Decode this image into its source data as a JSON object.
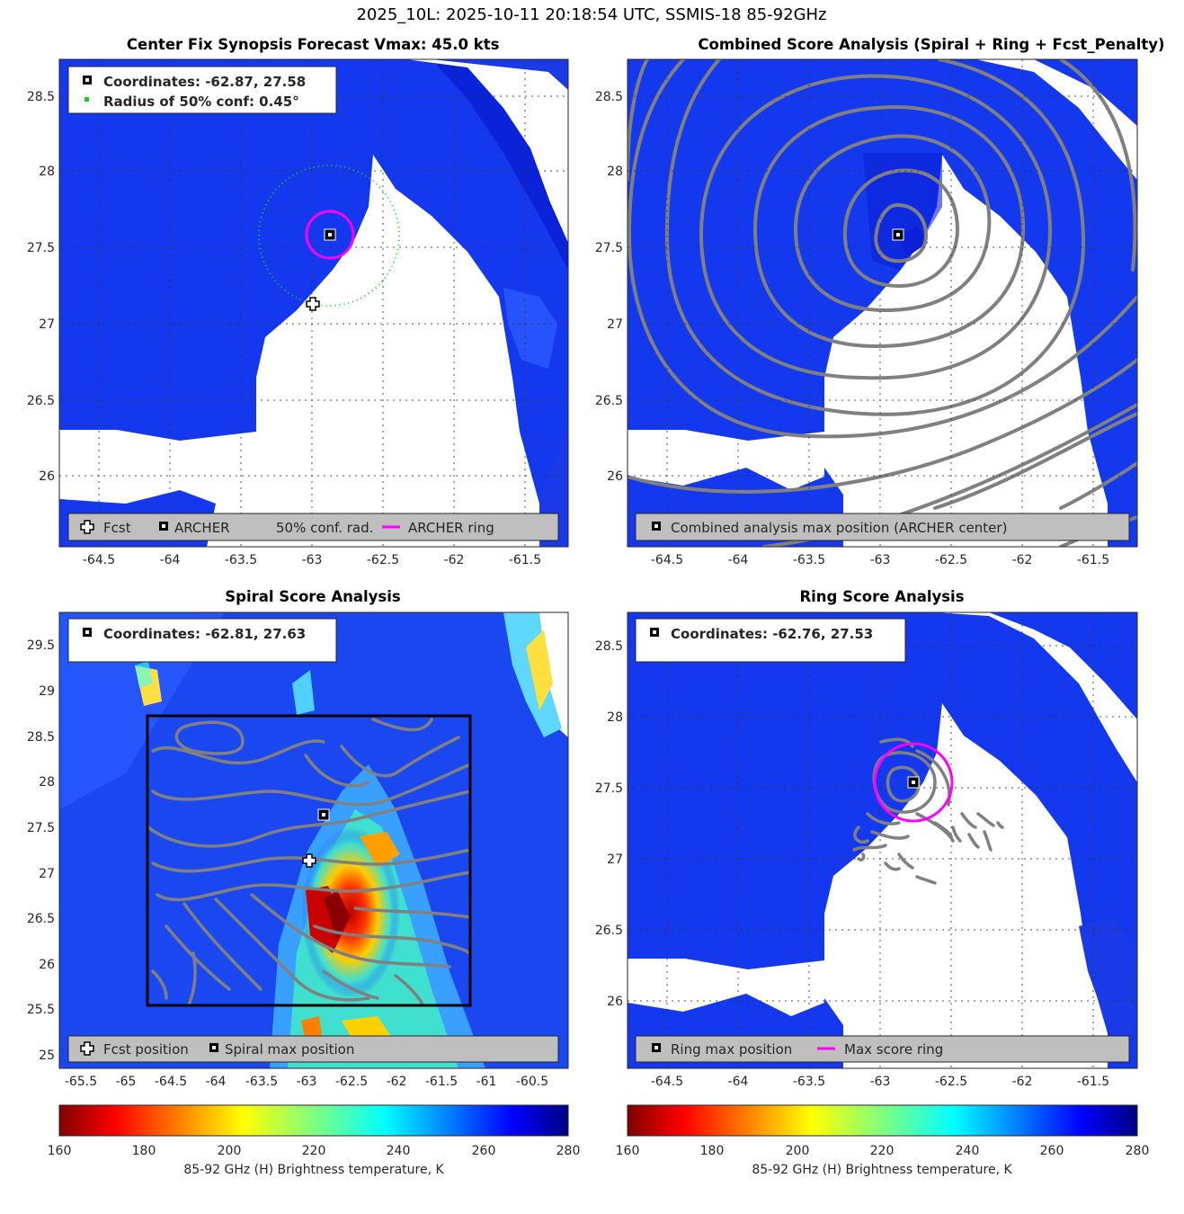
{
  "figure": {
    "title": "2025_10L: 2025-10-11 20:18:54 UTC, SSMIS-18 85-92GHz"
  },
  "colors": {
    "ring": "#ff00ff",
    "conf_circle": "#22cc22",
    "contour": "#808080",
    "legend_bg": "#bfbfbf",
    "no_data": "#ffffff"
  },
  "panels": {
    "synopsis": {
      "title": "Center Fix Synopsis",
      "subtitle": "Forecast Vmax: 45.0 kts",
      "info_line1": "Coordinates: -62.87, 27.58",
      "info_line2": "Radius of 50% conf: 0.45°",
      "legend": [
        "Fcst",
        "ARCHER",
        "50% conf. rad.",
        "ARCHER ring"
      ]
    },
    "combined": {
      "title": "Combined Score Analysis (Spiral + Ring + Fcst_Penalty)",
      "legend": [
        "Combined analysis max position (ARCHER center)"
      ]
    },
    "spiral": {
      "title": "Spiral Score Analysis",
      "info_line1": "Coordinates: -62.81, 27.63",
      "legend": [
        "Fcst position",
        "Spiral max position"
      ]
    },
    "ring": {
      "title": "Ring Score Analysis",
      "info_line1": "Coordinates: -62.76, 27.53",
      "legend": [
        "Ring max position",
        "Max score ring"
      ]
    }
  },
  "colorbars": [
    {
      "label": "85-92 GHz (H) Brightness temperature, K",
      "ticks": [
        "160",
        "180",
        "200",
        "220",
        "240",
        "260",
        "280"
      ]
    },
    {
      "label": "85-92 GHz (H) Brightness temperature, K",
      "ticks": [
        "160",
        "180",
        "200",
        "220",
        "240",
        "260",
        "280"
      ]
    }
  ],
  "chart_data": [
    {
      "type": "heatmap",
      "title": "Center Fix Synopsis",
      "subtitle": "Forecast Vmax: 45.0 kts",
      "xlim": [
        -64.85,
        -61.25
      ],
      "ylim": [
        25.55,
        28.75
      ],
      "xticks": [
        -64.5,
        -64,
        -63.5,
        -63,
        -62.5,
        -62,
        -61.5
      ],
      "yticks": [
        26,
        26.5,
        27,
        27.5,
        28,
        28.5
      ],
      "grid": true,
      "legend_position": "bottom",
      "points": [
        {
          "label": "ARCHER",
          "x": -62.87,
          "y": 27.58
        },
        {
          "label": "Fcst",
          "x": -63.0,
          "y": 27.14
        }
      ],
      "archer_ring_radius_deg": 0.15,
      "conf_radius_deg": 0.45,
      "colorbar_range": [
        160,
        280
      ]
    },
    {
      "type": "heatmap",
      "title": "Combined Score Analysis (Spiral + Ring + Fcst_Penalty)",
      "xlim": [
        -64.85,
        -61.25
      ],
      "ylim": [
        25.55,
        28.75
      ],
      "xticks": [
        -64.5,
        -64,
        -63.5,
        -63,
        -62.5,
        -62,
        -61.5
      ],
      "yticks": [
        26,
        26.5,
        27,
        27.5,
        28,
        28.5
      ],
      "grid": true,
      "legend_position": "bottom",
      "points": [
        {
          "label": "Combined analysis max position (ARCHER center)",
          "x": -62.87,
          "y": 27.58
        }
      ]
    },
    {
      "type": "heatmap",
      "title": "Spiral Score Analysis",
      "xlim": [
        -65.75,
        -60.1
      ],
      "ylim": [
        24.9,
        29.85
      ],
      "xticks": [
        -65.5,
        -65,
        -64.5,
        -64,
        -63.5,
        -63,
        -62.5,
        -62,
        -61.5,
        -61,
        -60.5
      ],
      "yticks": [
        25,
        25.5,
        26,
        26.5,
        27,
        27.5,
        28,
        28.5,
        29,
        29.5
      ],
      "grid": false,
      "legend_position": "bottom",
      "points": [
        {
          "label": "Spiral max position",
          "x": -62.81,
          "y": 27.63
        },
        {
          "label": "Fcst position",
          "x": -63.0,
          "y": 27.14
        }
      ],
      "box": {
        "x": [
          -64.8,
          -61.2
        ],
        "y": [
          25.52,
          28.72
        ]
      },
      "colorbar_range": [
        160,
        280
      ]
    },
    {
      "type": "heatmap",
      "title": "Ring Score Analysis",
      "xlim": [
        -64.85,
        -61.25
      ],
      "ylim": [
        25.55,
        28.75
      ],
      "xticks": [
        -64.5,
        -64,
        -63.5,
        -63,
        -62.5,
        -62,
        -61.5
      ],
      "yticks": [
        26,
        26.5,
        27,
        27.5,
        28,
        28.5
      ],
      "grid": true,
      "legend_position": "bottom",
      "points": [
        {
          "label": "Ring max position",
          "x": -62.76,
          "y": 27.53
        }
      ],
      "max_score_ring_radius_deg": 0.2
    }
  ]
}
